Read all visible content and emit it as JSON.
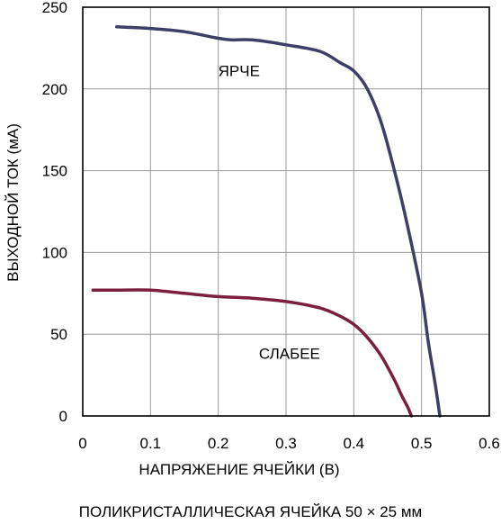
{
  "caption": "ПОЛИКРИСТАЛЛИЧЕСКАЯ ЯЧЕЙКА 50 × 25 мм",
  "chart_data": {
    "type": "line",
    "title": "",
    "xlabel": "НАПРЯЖЕНИЕ ЯЧЕЙКИ (В)",
    "ylabel": "ВЫХОДНОЙ ТОК (мА)",
    "xlim": [
      0,
      0.6
    ],
    "ylim": [
      0,
      250
    ],
    "xticks": [
      0,
      0.1,
      0.2,
      0.3,
      0.4,
      0.5,
      0.6
    ],
    "xtick_labels": [
      "0",
      "0.1",
      "0.2",
      "0.3",
      "0.4",
      "0.5",
      "0.6"
    ],
    "yticks": [
      0,
      50,
      100,
      150,
      200,
      250
    ],
    "ytick_labels": [
      "0",
      "50",
      "100",
      "150",
      "200",
      "250"
    ],
    "grid": true,
    "series": [
      {
        "name": "ЯРЧЕ",
        "color": "#3d3f66",
        "x": [
          0.05,
          0.1,
          0.15,
          0.2,
          0.22,
          0.25,
          0.3,
          0.35,
          0.38,
          0.4,
          0.42,
          0.44,
          0.46,
          0.48,
          0.5,
          0.51,
          0.52,
          0.527
        ],
        "y": [
          238,
          237,
          235,
          231,
          230,
          230,
          227,
          223,
          216,
          211,
          200,
          180,
          150,
          115,
          75,
          45,
          20,
          0
        ]
      },
      {
        "name": "СЛАБЕЕ",
        "color": "#7b1f3e",
        "x": [
          0.015,
          0.05,
          0.1,
          0.15,
          0.2,
          0.25,
          0.3,
          0.35,
          0.38,
          0.4,
          0.42,
          0.44,
          0.46,
          0.47,
          0.48,
          0.485
        ],
        "y": [
          77,
          77,
          77,
          75,
          73,
          72,
          70,
          66,
          61,
          56,
          48,
          37,
          22,
          13,
          5,
          0
        ]
      }
    ],
    "annotations": [
      {
        "text": "ЯРЧЕ",
        "x": 0.2,
        "y": 208
      },
      {
        "text": "СЛАБЕЕ",
        "x": 0.26,
        "y": 35
      }
    ]
  }
}
